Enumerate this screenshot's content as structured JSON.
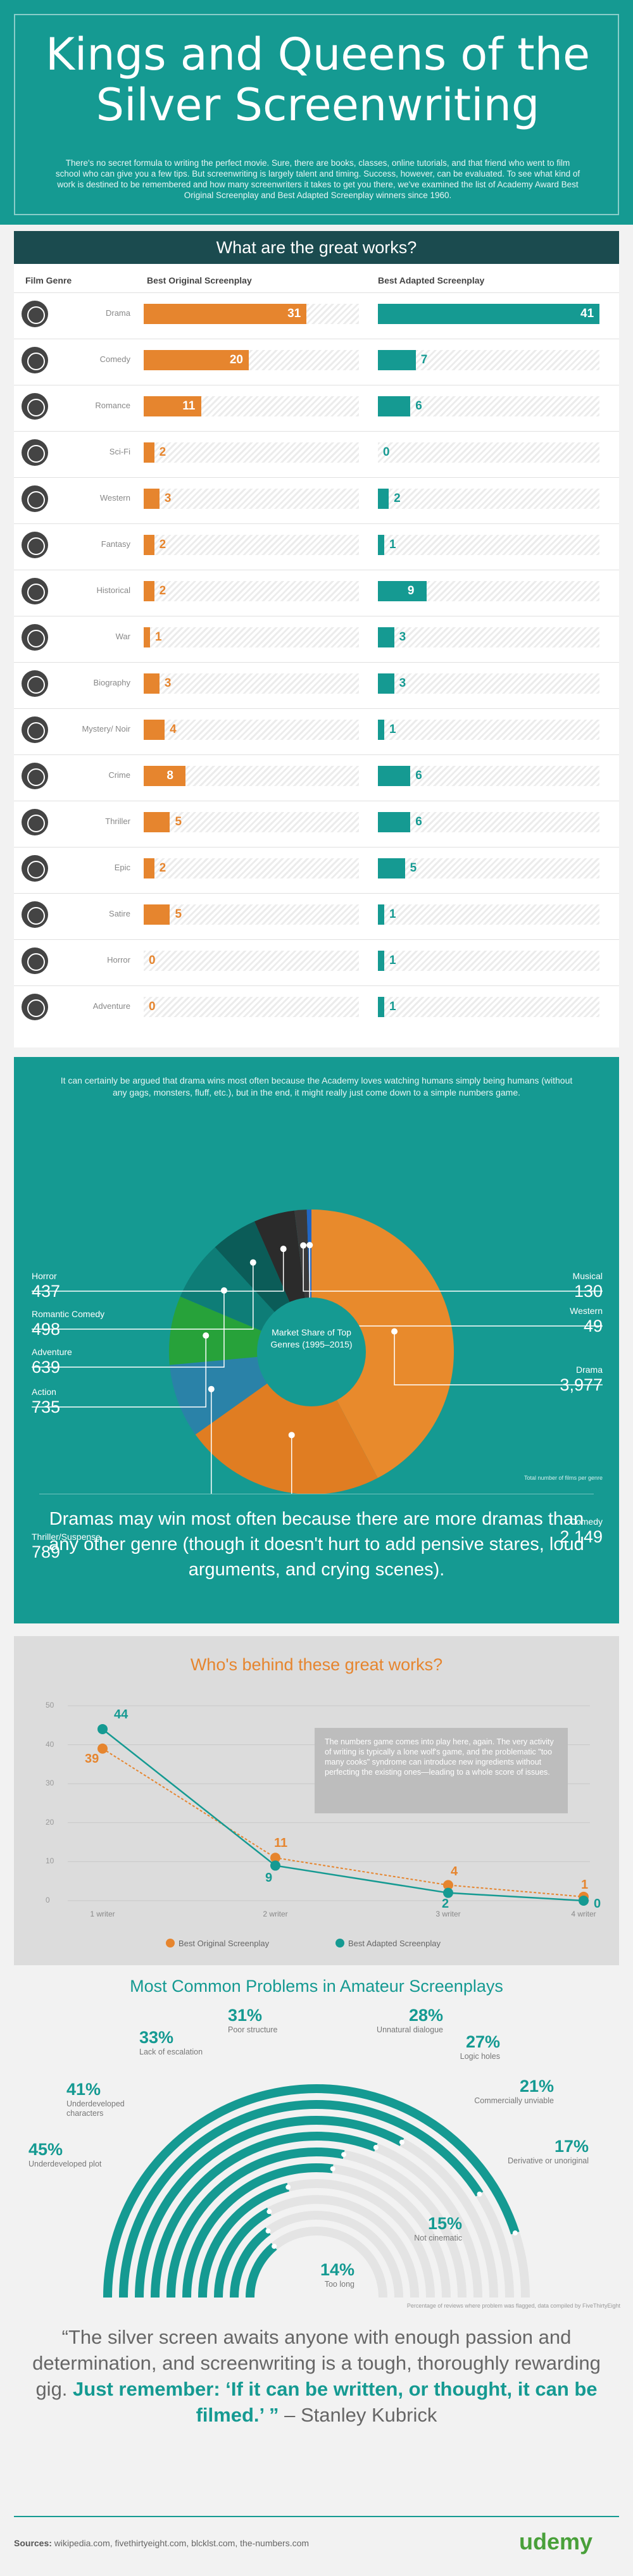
{
  "header": {
    "title_line1": "Kings and Queens of the",
    "title_line2": "Silver Screenwriting",
    "intro": "There's no secret formula to writing the perfect movie. Sure, there are books, classes, online tutorials, and that friend who went to film school who can give you a few tips. But screenwriting is largely talent and timing. Success, however, can be evaluated. To see what kind of work is destined to be remembered and how many screenwriters it takes to get you there, we've examined the list of Academy Award Best Original Screenplay and Best Adapted Screenplay winners since 1960."
  },
  "colors": {
    "teal": "#159a92",
    "orange": "#e6852e",
    "dark": "#1b4b4f"
  },
  "section1": {
    "title": "What are the great works?",
    "col_genre": "Film Genre",
    "col_original": "Best Original Screenplay",
    "col_adapted": "Best Adapted Screenplay"
  },
  "chart_data": [
    {
      "type": "bar",
      "title": "What are the great works?",
      "categories": [
        "Drama",
        "Comedy",
        "Romance",
        "Sci-Fi",
        "Western",
        "Fantasy",
        "Historical",
        "War",
        "Biography",
        "Mystery/ Noir",
        "Crime",
        "Thriller",
        "Epic",
        "Satire",
        "Horror",
        "Adventure"
      ],
      "series": [
        {
          "name": "Best Original Screenplay",
          "values": [
            31,
            20,
            11,
            2,
            3,
            2,
            2,
            1,
            3,
            4,
            8,
            5,
            2,
            5,
            0,
            0
          ]
        },
        {
          "name": "Best Adapted Screenplay",
          "values": [
            41,
            7,
            6,
            0,
            2,
            1,
            9,
            3,
            3,
            1,
            6,
            6,
            5,
            1,
            1,
            1
          ]
        }
      ]
    },
    {
      "type": "pie",
      "title": "",
      "center_label": "Market Share of Top Genres (1995–2015)",
      "slices": [
        {
          "name": "Drama",
          "value": 3977,
          "color": "#e6852e"
        },
        {
          "name": "Comedy",
          "value": 2149,
          "color": "#e6852e"
        },
        {
          "name": "Thriller/Suspense",
          "value": 789,
          "color": "#2a82a8"
        },
        {
          "name": "Action",
          "value": 735,
          "color": "#27a23a"
        },
        {
          "name": "Adventure",
          "value": 639,
          "color": "#0e7d77"
        },
        {
          "name": "Romantic Comedy",
          "value": 498,
          "color": "#0b5c58"
        },
        {
          "name": "Horror",
          "value": 437,
          "color": "#2f2f2f"
        },
        {
          "name": "Musical",
          "value": 130,
          "color": "#3d3d3d"
        },
        {
          "name": "Western",
          "value": 49,
          "color": "#2266c4"
        }
      ]
    },
    {
      "type": "line",
      "title": "Who's behind these great works?",
      "categories": [
        "1 writer",
        "2 writer",
        "3 writer",
        "4 writer"
      ],
      "ylim": [
        0,
        50
      ],
      "yticks": [
        0,
        10,
        20,
        30,
        40,
        50
      ],
      "series": [
        {
          "name": "Best Original Screenplay",
          "values": [
            39,
            11,
            4,
            1
          ]
        },
        {
          "name": "Best Adapted Screenplay",
          "values": [
            44,
            9,
            2,
            0
          ]
        }
      ]
    },
    {
      "type": "bar",
      "title": "Most Common Problems in Amateur Screenplays",
      "categories": [
        "Underdeveloped plot",
        "Underdeveloped characters",
        "Lack of escalation",
        "Poor structure",
        "Unnatural dialogue",
        "Logic holes",
        "Commercially unviable",
        "Derivative or unoriginal",
        "Not cinematic",
        "Too long"
      ],
      "values": [
        45,
        41,
        33,
        31,
        28,
        27,
        21,
        17,
        15,
        14
      ]
    }
  ],
  "section2": {
    "intro": "It can certainly be argued that drama wins most often because the Academy loves watching humans simply being humans (without any gags, monsters, fluff, etc.), but in the end, it might really just come down to a simple numbers game.",
    "values_display": [
      "3,977",
      "2,149",
      "789",
      "735",
      "639",
      "498",
      "437",
      "130",
      "49"
    ],
    "note": "Total number of films per genre",
    "quote": "Dramas may win most often because there are more dramas than any other genre (though it doesn't hurt to add pensive stares, loud arguments, and crying scenes)."
  },
  "section3": {
    "note": "The numbers game comes into play here, again. The very activity of writing is typically a lone wolf's game, and the problematic \"too many cooks\" syndrome can introduce new ingredients without perfecting the existing ones—leading to a whole score of issues."
  },
  "section4": {
    "values_display": [
      "45%",
      "41%",
      "33%",
      "31%",
      "28%",
      "27%",
      "21%",
      "17%",
      "15%",
      "14%"
    ],
    "note": "Percentage of reviews where problem was flagged, data compiled by FiveThirtyEight"
  },
  "quote": {
    "part1": "“The silver screen awaits anyone with enough passion and determination, and screenwriting is a tough, thoroughly rewarding gig. ",
    "part2": "Just remember: ‘If it can be written, or thought, it can be filmed.’ ”",
    "part3": " – Stanley Kubrick"
  },
  "footer": {
    "sources_label": "Sources:",
    "sources": " wikipedia.com, fivethirtyeight.com, blcklst.com, the-numbers.com",
    "logo": "udemy"
  }
}
